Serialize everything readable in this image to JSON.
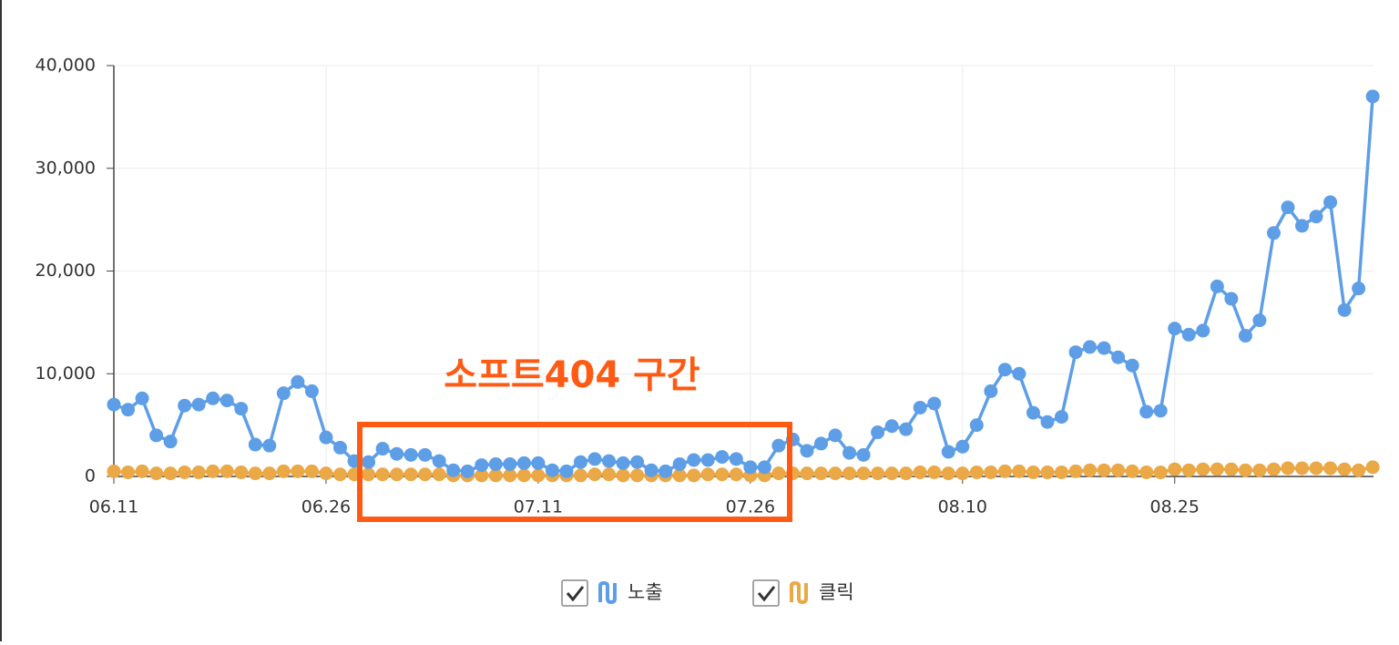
{
  "chart_data": {
    "type": "line",
    "categories": [
      "06.11",
      null,
      null,
      null,
      null,
      null,
      null,
      null,
      null,
      null,
      null,
      null,
      null,
      null,
      null,
      "06.26",
      null,
      null,
      null,
      null,
      null,
      null,
      null,
      null,
      null,
      null,
      null,
      null,
      null,
      null,
      "07.11",
      null,
      null,
      null,
      null,
      null,
      null,
      null,
      null,
      null,
      null,
      null,
      null,
      null,
      null,
      "07.26",
      null,
      null,
      null,
      null,
      null,
      null,
      null,
      null,
      null,
      null,
      null,
      null,
      null,
      null,
      "08.10",
      null,
      null,
      null,
      null,
      null,
      null,
      null,
      null,
      null,
      null,
      null,
      null,
      null,
      null,
      "08.25",
      null,
      null,
      null,
      null,
      null,
      null,
      null,
      null,
      null,
      null,
      null,
      null,
      null,
      null
    ],
    "series": [
      {
        "name": "노출",
        "color": "#5e9ee6",
        "values": [
          7000,
          6500,
          7600,
          4000,
          3400,
          6900,
          7000,
          7600,
          7400,
          6600,
          3100,
          3000,
          8100,
          9200,
          8300,
          3800,
          2800,
          1500,
          1400,
          2700,
          2200,
          2100,
          2100,
          1500,
          600,
          500,
          1100,
          1200,
          1200,
          1300,
          1300,
          600,
          500,
          1400,
          1700,
          1500,
          1300,
          1400,
          600,
          500,
          1200,
          1600,
          1600,
          1900,
          1700,
          900,
          900,
          3000,
          3600,
          2500,
          3200,
          4000,
          2300,
          2100,
          4300,
          4900,
          4600,
          6700,
          7100,
          2400,
          2900,
          5000,
          8300,
          10400,
          10000,
          6200,
          5300,
          5800,
          12100,
          12600,
          12500,
          11600,
          10800,
          6300,
          6400,
          14400,
          13800,
          14200,
          18500,
          17300,
          13700,
          15200,
          23700,
          26200,
          24400,
          25300,
          26700,
          16200,
          18300,
          37000
        ]
      },
      {
        "name": "클릭",
        "color": "#eaa847",
        "values": [
          500,
          400,
          500,
          300,
          300,
          400,
          400,
          500,
          500,
          400,
          300,
          300,
          500,
          500,
          500,
          300,
          200,
          200,
          200,
          200,
          200,
          200,
          200,
          200,
          100,
          100,
          100,
          100,
          100,
          100,
          100,
          100,
          100,
          100,
          200,
          200,
          100,
          100,
          100,
          100,
          100,
          100,
          200,
          200,
          200,
          100,
          100,
          300,
          300,
          300,
          300,
          300,
          300,
          300,
          300,
          300,
          300,
          400,
          400,
          300,
          300,
          400,
          400,
          500,
          500,
          400,
          400,
          400,
          500,
          600,
          600,
          600,
          500,
          400,
          400,
          700,
          600,
          700,
          700,
          700,
          600,
          600,
          700,
          800,
          800,
          800,
          800,
          700,
          600,
          900
        ]
      }
    ],
    "ylim": [
      0,
      40000
    ],
    "yticks": [
      0,
      {
        "value": 10000,
        "label": "10,000"
      },
      {
        "value": 20000,
        "label": "20,000"
      },
      {
        "value": 30000,
        "label": "30,000"
      },
      {
        "value": 40000,
        "label": "40,000"
      }
    ],
    "grid": true,
    "annotation": "소프트404 구간"
  }
}
